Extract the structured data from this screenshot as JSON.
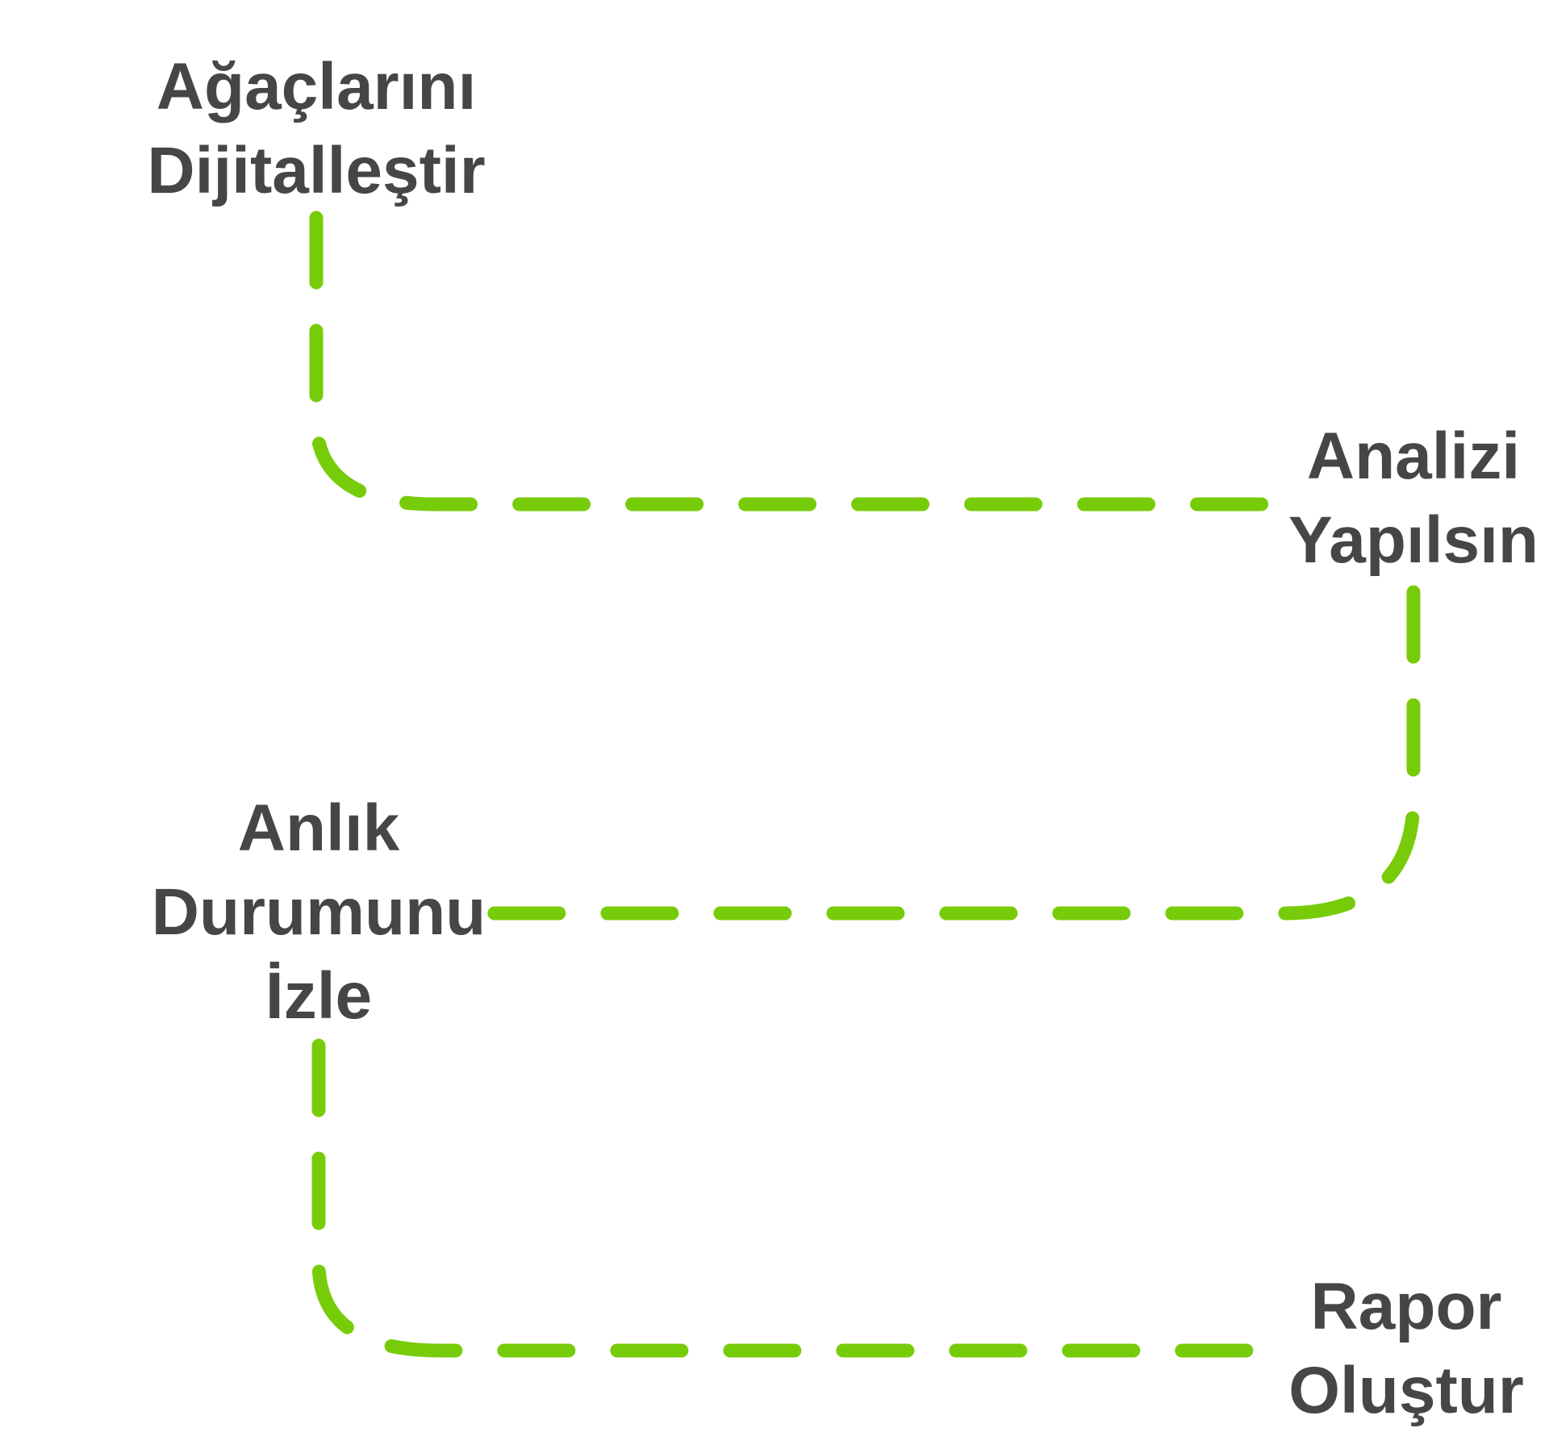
{
  "steps": [
    {
      "lines": [
        "Ağaçlarını",
        "Dijitalleştir"
      ]
    },
    {
      "lines": [
        "Analizi",
        "Yapılsın"
      ]
    },
    {
      "lines": [
        "Anlık",
        "Durumunu",
        "İzle"
      ]
    },
    {
      "lines": [
        "Rapor",
        "Oluştur"
      ]
    }
  ],
  "colors": {
    "connector": "#77CC0A",
    "text": "#464646",
    "background": "#FFFFFF"
  }
}
